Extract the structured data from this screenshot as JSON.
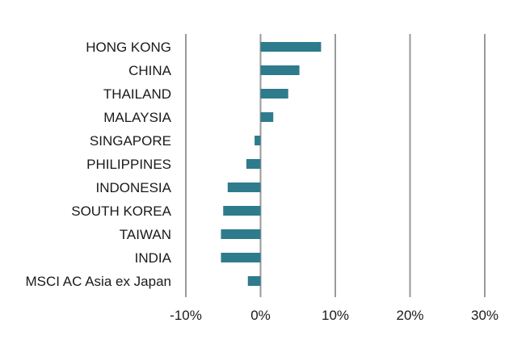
{
  "chart_data": {
    "type": "bar",
    "orientation": "horizontal",
    "categories": [
      "HONG KONG",
      "CHINA",
      "THAILAND",
      "MALAYSIA",
      "SINGAPORE",
      "PHILIPPINES",
      "INDONESIA",
      "SOUTH KOREA",
      "TAIWAN",
      "INDIA",
      "MSCI AC Asia ex Japan"
    ],
    "values": [
      8.1,
      5.2,
      3.7,
      1.7,
      -0.8,
      -1.9,
      -4.4,
      -5.0,
      -5.3,
      -5.3,
      -1.7
    ],
    "xlim": [
      -10,
      30
    ],
    "xticks": [
      -10,
      0,
      10,
      20,
      30
    ],
    "xtick_labels": [
      "-10%",
      "0%",
      "10%",
      "20%",
      "30%"
    ],
    "grid": "vertical",
    "colors": {
      "bar": "#2e7b8c",
      "grid": "#9a9a9a",
      "text": "#1a1a1a"
    }
  }
}
